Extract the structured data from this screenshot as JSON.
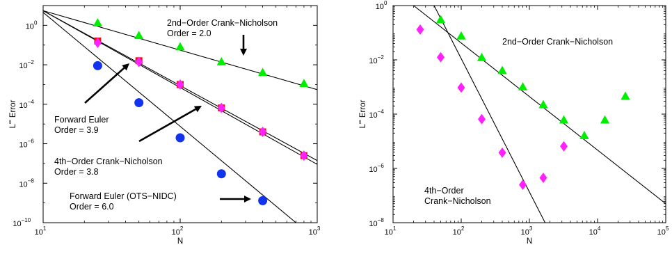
{
  "chart_data": [
    {
      "type": "scatter",
      "xscale": "log",
      "yscale": "log",
      "xlim": [
        10,
        1000
      ],
      "ylim": [
        1e-10,
        10
      ],
      "xlabel": "N",
      "ylabel": "L∞ Error",
      "xticks": [
        {
          "v": 10,
          "label": "10",
          "sup": "1"
        },
        {
          "v": 100,
          "label": "10",
          "sup": "2"
        },
        {
          "v": 1000,
          "label": "10",
          "sup": "3"
        }
      ],
      "yticks": [
        {
          "v": 1e-10,
          "label": "10",
          "sup": "−10"
        },
        {
          "v": 1e-08,
          "label": "10",
          "sup": "−8"
        },
        {
          "v": 1e-06,
          "label": "10",
          "sup": "−6"
        },
        {
          "v": 0.0001,
          "label": "10",
          "sup": "−4"
        },
        {
          "v": 0.01,
          "label": "10",
          "sup": "−2"
        },
        {
          "v": 1,
          "label": "10",
          "sup": "0"
        }
      ],
      "series": [
        {
          "marker": "triangle",
          "color": "#00ee00",
          "x": [
            25,
            50,
            100,
            200,
            400,
            800
          ],
          "y": [
            1.3,
            0.3,
            0.08,
            0.014,
            0.004,
            0.0011
          ],
          "fit": [
            [
              10,
              5.5
            ],
            [
              1000,
              0.00055
            ]
          ]
        },
        {
          "marker": "square",
          "color": "#ee1111",
          "x": [
            25,
            50,
            100,
            200,
            400,
            800
          ],
          "y": [
            0.16,
            0.016,
            0.001,
            6.5e-05,
            4e-06,
            2.5e-07
          ],
          "fit": [
            [
              10,
              5.5
            ],
            [
              1000,
              9e-08
            ]
          ]
        },
        {
          "marker": "diamond",
          "color": "#ff22ff",
          "x": [
            25,
            50,
            100,
            200,
            400,
            800
          ],
          "y": [
            0.13,
            0.014,
            0.001,
            6.5e-05,
            4e-06,
            2.5e-07
          ],
          "fit": [
            [
              10,
              5.5
            ],
            [
              1000,
              1.4e-07
            ]
          ]
        },
        {
          "marker": "circle",
          "color": "#1133ee",
          "x": [
            25,
            50,
            100,
            200,
            400
          ],
          "y": [
            0.009,
            0.00012,
            2e-06,
            3e-08,
            1.3e-09
          ],
          "fit": [
            [
              10,
              4.5
            ],
            [
              700,
              1e-10
            ]
          ]
        }
      ],
      "annotations": [
        {
          "lines": [
            "2nd−Order Crank−Nicholson",
            "Order = 2.0"
          ]
        },
        {
          "lines": [
            "Forward Euler",
            "Order = 3.9"
          ]
        },
        {
          "lines": [
            "4th−Order Crank−Nicholson",
            "Order = 3.8"
          ]
        },
        {
          "lines": [
            "Forward Euler (OTS−NIDC)",
            "Order = 6.0"
          ]
        }
      ]
    },
    {
      "type": "scatter",
      "xscale": "log",
      "yscale": "log",
      "xlim": [
        10,
        100000
      ],
      "ylim": [
        1e-08,
        1
      ],
      "xlabel": "N",
      "ylabel": "L∞ Error",
      "xticks": [
        {
          "v": 10,
          "label": "10",
          "sup": "1"
        },
        {
          "v": 100,
          "label": "10",
          "sup": "2"
        },
        {
          "v": 1000,
          "label": "10",
          "sup": "3"
        },
        {
          "v": 10000,
          "label": "10",
          "sup": "4"
        },
        {
          "v": 100000,
          "label": "10",
          "sup": "5"
        }
      ],
      "yticks": [
        {
          "v": 1e-08,
          "label": "10",
          "sup": "−8"
        },
        {
          "v": 1e-06,
          "label": "10",
          "sup": "−6"
        },
        {
          "v": 0.0001,
          "label": "10",
          "sup": "−4"
        },
        {
          "v": 0.01,
          "label": "10",
          "sup": "−2"
        },
        {
          "v": 1,
          "label": "10",
          "sup": "0"
        }
      ],
      "series": [
        {
          "marker": "triangle",
          "color": "#00ee00",
          "x": [
            50,
            100,
            200,
            400,
            800,
            1600,
            3200,
            6400,
            12800,
            25600
          ],
          "y": [
            0.3,
            0.075,
            0.012,
            0.004,
            0.001,
            0.00022,
            6e-05,
            1.6e-05,
            6e-05,
            0.00045
          ],
          "fit": [
            [
              20,
              1
            ],
            [
              100000,
              5e-08
            ]
          ]
        },
        {
          "marker": "diamond",
          "color": "#ff22ff",
          "x": [
            25,
            50,
            100,
            200,
            400,
            800,
            1600,
            3200
          ],
          "y": [
            0.13,
            0.0125,
            0.00095,
            6.5e-05,
            3.8e-06,
            2.5e-07,
            4.5e-07,
            6.5e-06
          ],
          "fit": [
            [
              40,
              1
            ],
            [
              1700,
              1e-08
            ]
          ]
        }
      ],
      "annotations": [
        {
          "lines": [
            "2nd−Order Crank−Nicholson"
          ]
        },
        {
          "lines": [
            "4th−Order",
            "Crank−Nicholson"
          ]
        }
      ]
    }
  ]
}
